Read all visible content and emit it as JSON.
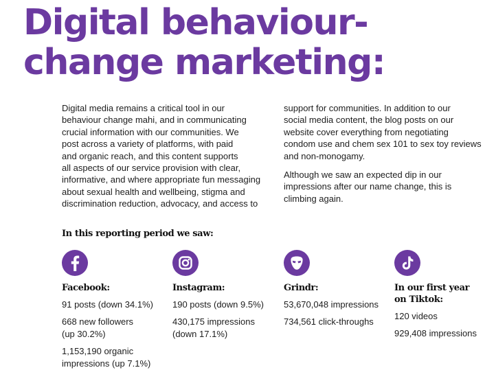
{
  "title": {
    "line1": "Digital behaviour-",
    "line2": "change marketing:"
  },
  "body": {
    "left_lines": [
      "Digital media remains a critical tool in our",
      "behaviour change mahi, and in communicating",
      "crucial information with our communities. We",
      "post across a variety of platforms, with paid",
      "and organic reach, and this content supports",
      "all aspects of our service provision with clear,",
      "informative, and where appropriate fun messaging",
      "about sexual health and wellbeing, stigma and",
      "discrimination reduction, advocacy, and access to"
    ],
    "right_para1_lines": [
      "support for communities. In addition to our",
      "social media content, the blog posts on our",
      "website cover everything from negotiating",
      "condom use and chem sex 101 to sex toy reviews",
      "and non-monogamy."
    ],
    "right_para2_lines": [
      "Although we saw an expected dip in our",
      "impressions after our name change, this is",
      "climbing again."
    ]
  },
  "subheading": "In this reporting period we saw:",
  "stats": {
    "facebook": {
      "icon": "facebook-icon",
      "name": "Facebook:",
      "line1": "91 posts (down 34.1%)",
      "line2a": "668 new followers",
      "line2b": "(up 30.2%)",
      "line3a": "1,153,190 organic",
      "line3b": "impressions (up 7.1%)"
    },
    "instagram": {
      "icon": "instagram-icon",
      "name": "Instagram:",
      "line1": "190 posts (down 9.5%)",
      "line2a": "430,175 impressions",
      "line2b": "(down 17.1%)"
    },
    "grindr": {
      "icon": "grindr-icon",
      "name": "Grindr:",
      "line1": "53,670,048 impressions",
      "line2": "734,561 click-throughs"
    },
    "tiktok": {
      "icon": "tiktok-icon",
      "name_line1": "In our first year",
      "name_line2": "on Tiktok:",
      "line1": "120 videos",
      "line2": "929,408 impressions"
    }
  },
  "colors": {
    "brand_purple": "#6b3aa0",
    "text": "#1d1d1d"
  }
}
